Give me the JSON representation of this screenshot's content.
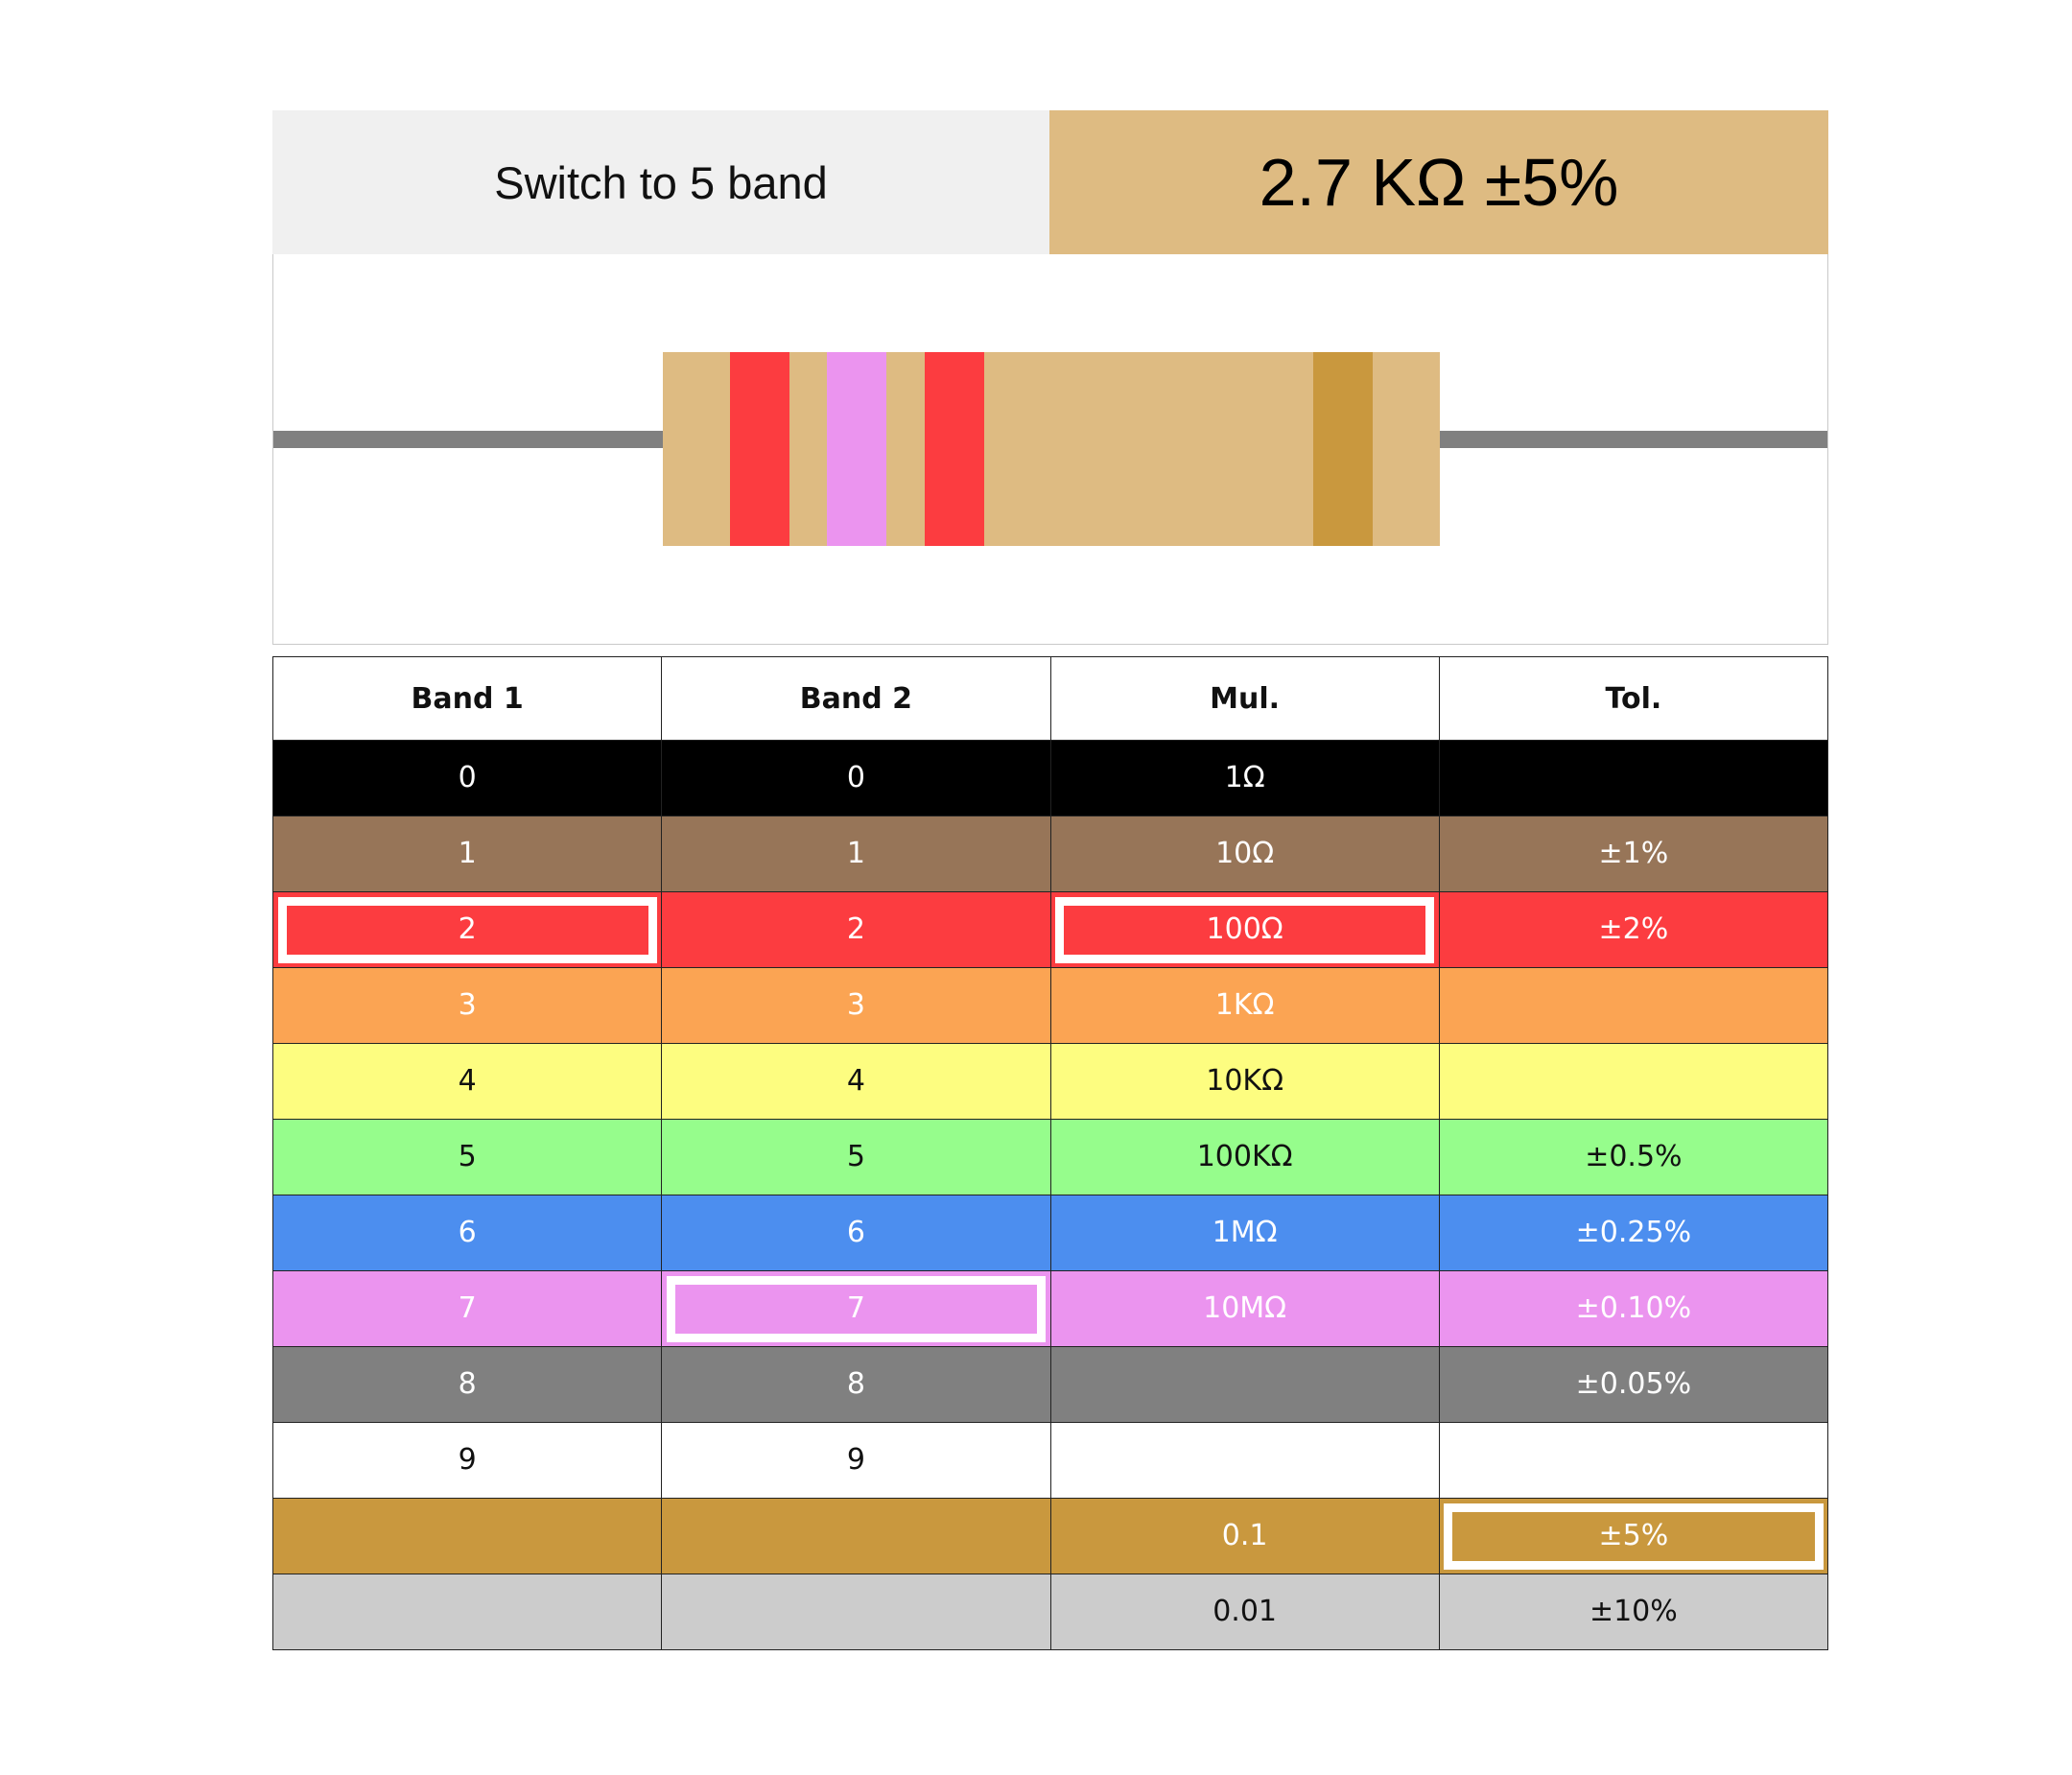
{
  "header": {
    "switch_label": "Switch to 5 band",
    "value_label": "2.7 KΩ ±5%"
  },
  "resistor": {
    "body_color": "#debb82",
    "lead_color": "#808080",
    "bands": [
      {
        "name": "band-1",
        "color": "#fc3c40"
      },
      {
        "name": "band-2",
        "color": "#eb94ef"
      },
      {
        "name": "multiplier",
        "color": "#fc3c40"
      },
      {
        "name": "tolerance",
        "color": "#c9983e"
      }
    ]
  },
  "table": {
    "headers": [
      "Band 1",
      "Band 2",
      "Mul.",
      "Tol."
    ],
    "rows": [
      {
        "color_name": "black",
        "bg": "#000000",
        "fg": "#ffffff",
        "cells": [
          "0",
          "0",
          "1Ω",
          ""
        ]
      },
      {
        "color_name": "brown",
        "bg": "#977558",
        "fg": "#ffffff",
        "cells": [
          "1",
          "1",
          "10Ω",
          "±1%"
        ]
      },
      {
        "color_name": "red",
        "bg": "#fc3c40",
        "fg": "#ffffff",
        "cells": [
          "2",
          "2",
          "100Ω",
          "±2%"
        ]
      },
      {
        "color_name": "orange",
        "bg": "#fba453",
        "fg": "#ffffff",
        "cells": [
          "3",
          "3",
          "1KΩ",
          ""
        ]
      },
      {
        "color_name": "yellow",
        "bg": "#fdfd80",
        "fg": "#111111",
        "cells": [
          "4",
          "4",
          "10KΩ",
          ""
        ]
      },
      {
        "color_name": "green",
        "bg": "#96fd8c",
        "fg": "#111111",
        "cells": [
          "5",
          "5",
          "100KΩ",
          "±0.5%"
        ]
      },
      {
        "color_name": "blue",
        "bg": "#4c8eef",
        "fg": "#ffffff",
        "cells": [
          "6",
          "6",
          "1MΩ",
          "±0.25%"
        ]
      },
      {
        "color_name": "violet",
        "bg": "#eb94ef",
        "fg": "#ffffff",
        "cells": [
          "7",
          "7",
          "10MΩ",
          "±0.10%"
        ]
      },
      {
        "color_name": "grey",
        "bg": "#808080",
        "fg": "#ffffff",
        "cells": [
          "8",
          "8",
          "",
          "±0.05%"
        ]
      },
      {
        "color_name": "white",
        "bg": "#ffffff",
        "fg": "#111111",
        "cells": [
          "9",
          "9",
          "",
          ""
        ]
      },
      {
        "color_name": "gold",
        "bg": "#c9983e",
        "fg": "#ffffff",
        "cells": [
          "",
          "",
          "0.1",
          "±5%"
        ]
      },
      {
        "color_name": "silver",
        "bg": "#cccccc",
        "fg": "#111111",
        "cells": [
          "",
          "",
          "0.01",
          "±10%"
        ]
      }
    ],
    "selected": {
      "band1": "red",
      "band2": "violet",
      "multiplier": "red",
      "tolerance": "gold"
    }
  }
}
